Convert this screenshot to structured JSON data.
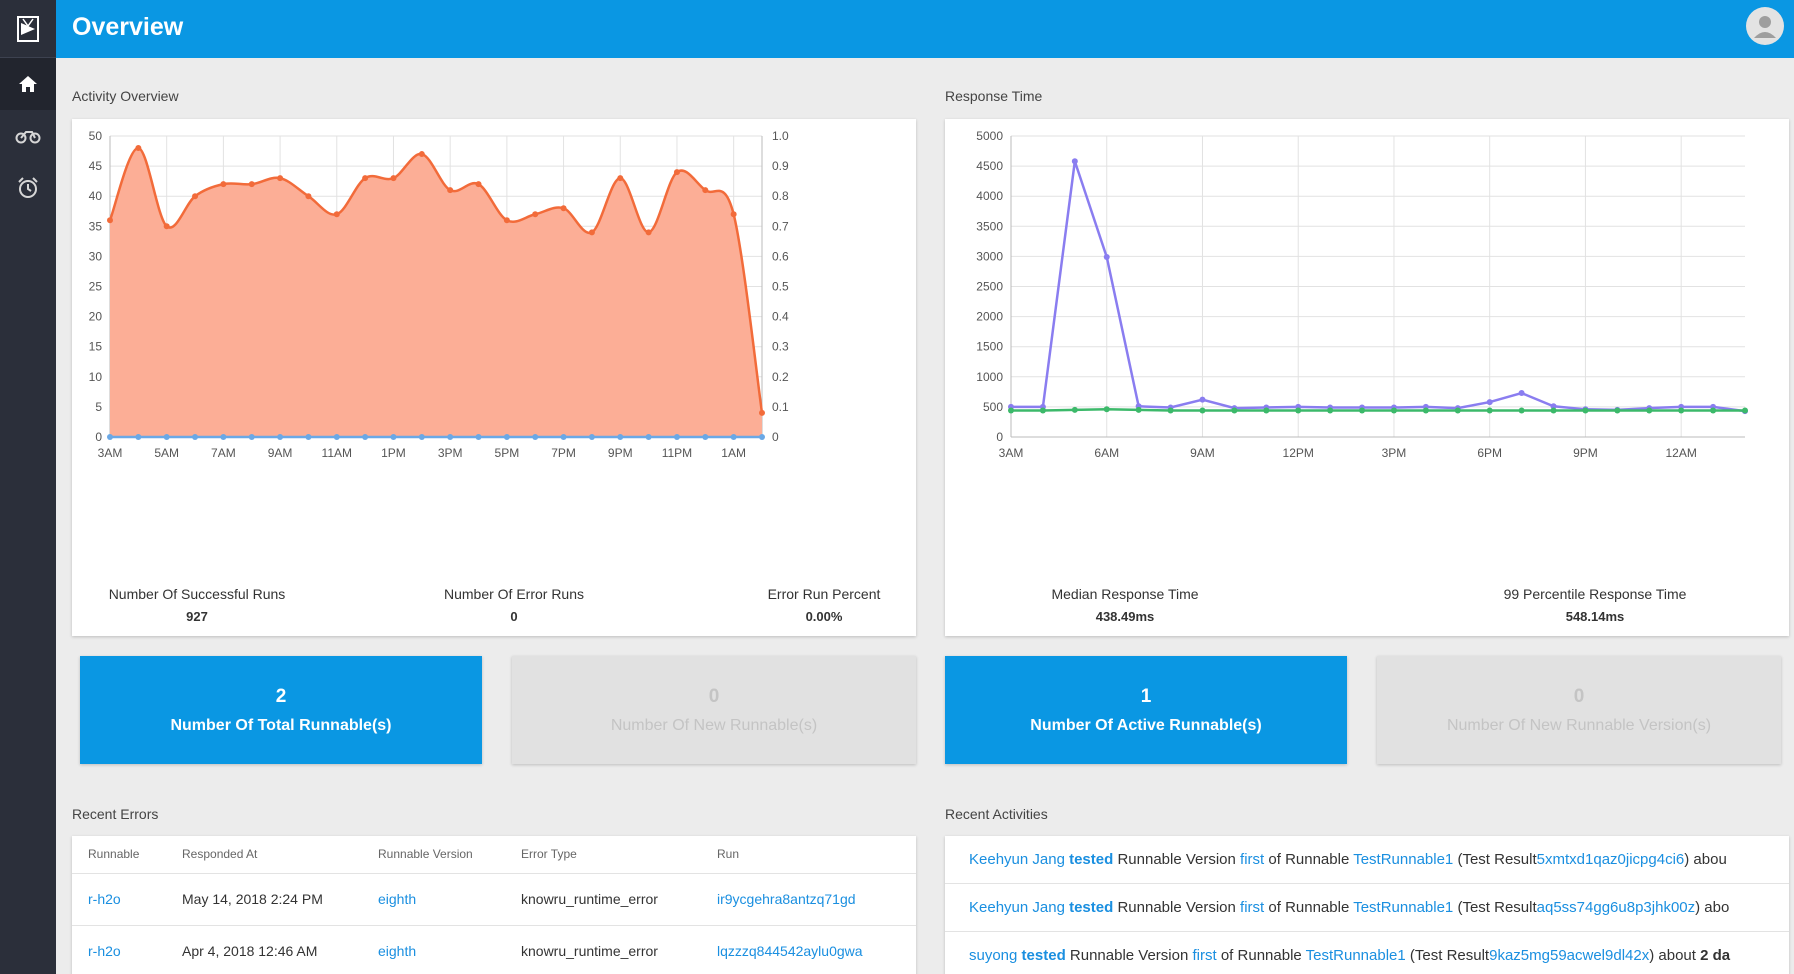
{
  "header": {
    "title": "Overview"
  },
  "sidebar": {
    "items": [
      "home",
      "runnables",
      "schedules"
    ]
  },
  "activity": {
    "section_title": "Activity Overview",
    "stats": [
      {
        "label": "Number Of Successful Runs",
        "value": "927"
      },
      {
        "label": "Number Of Error Runs",
        "value": "0"
      },
      {
        "label": "Error Run Percent",
        "value": "0.00%"
      }
    ]
  },
  "response": {
    "section_title": "Response Time",
    "stats": [
      {
        "label": "Median Response Time",
        "value": "438.49ms"
      },
      {
        "label": "99 Percentile Response Time",
        "value": "548.14ms"
      }
    ]
  },
  "tiles": [
    {
      "number": "2",
      "label": "Number Of Total Runnable(s)"
    },
    {
      "number": "0",
      "label": "Number Of New Runnable(s)"
    },
    {
      "number": "1",
      "label": "Number Of Active Runnable(s)"
    },
    {
      "number": "0",
      "label": "Number Of New Runnable Version(s)"
    }
  ],
  "recent_errors": {
    "title": "Recent Errors",
    "columns": [
      "Runnable",
      "Responded At",
      "Runnable Version",
      "Error Type",
      "Run"
    ],
    "rows": [
      [
        "r-h2o",
        "May 14, 2018 2:24 PM",
        "eighth",
        "knowru_runtime_error",
        "ir9ycgehra8antzq71gd"
      ],
      [
        "r-h2o",
        "Apr 4, 2018 12:46 AM",
        "eighth",
        "knowru_runtime_error",
        "lqzzzq844542aylu0gwa"
      ]
    ]
  },
  "recent_activities": {
    "title": "Recent Activities",
    "rows": [
      {
        "user": "Keehyun Jang",
        "action": "tested",
        "t1": "Runnable Version",
        "version": "first",
        "t2": "of Runnable",
        "runnable": "TestRunnable1",
        "t3": "(Test Result",
        "result": "5xmtxd1qaz0jicpg4ci6",
        "t4": ") abou"
      },
      {
        "user": "Keehyun Jang",
        "action": "tested",
        "t1": "Runnable Version",
        "version": "first",
        "t2": "of Runnable",
        "runnable": "TestRunnable1",
        "t3": "(Test Result",
        "result": "aq5ss74gg6u8p3jhk00z",
        "t4": ") abo"
      },
      {
        "user": "suyong",
        "action": "tested",
        "t1": "Runnable Version",
        "version": "first",
        "t2": "of Runnable",
        "runnable": "TestRunnable1",
        "t3": "(Test Result",
        "result": "9kaz5mg59acwel9dl42x",
        "t4": ") about",
        "tail": "2 da"
      }
    ]
  },
  "chart_data": [
    {
      "type": "area",
      "categories": [
        "3AM",
        "4AM",
        "5AM",
        "6AM",
        "7AM",
        "8AM",
        "9AM",
        "10AM",
        "11AM",
        "12PM",
        "1PM",
        "2PM",
        "3PM",
        "4PM",
        "5PM",
        "6PM",
        "7PM",
        "8PM",
        "9PM",
        "10PM",
        "11PM",
        "12AM",
        "1AM",
        "2AM"
      ],
      "x_tick_labels": [
        "3AM",
        "5AM",
        "7AM",
        "9AM",
        "11AM",
        "1PM",
        "3PM",
        "5PM",
        "7PM",
        "9PM",
        "11PM",
        "1AM"
      ],
      "series": [
        {
          "values": [
            36,
            48,
            35,
            40,
            42,
            42,
            43,
            40,
            37,
            43,
            43,
            47,
            41,
            42,
            36,
            37,
            38,
            34,
            43,
            34,
            44,
            41,
            37,
            4
          ],
          "color": "#f26b3a",
          "fill": "#fcae96",
          "axis": "left"
        },
        {
          "values": [
            0,
            0,
            0,
            0,
            0,
            0,
            0,
            0,
            0,
            0,
            0,
            0,
            0,
            0,
            0,
            0,
            0,
            0,
            0,
            0,
            0,
            0,
            0,
            0
          ],
          "color": "#6aa8e6",
          "axis": "right"
        }
      ],
      "ylim": [
        0,
        50
      ],
      "y_ticks": [
        0,
        5,
        10,
        15,
        20,
        25,
        30,
        35,
        40,
        45,
        50
      ],
      "y2lim": [
        0,
        1
      ],
      "y2_ticks": [
        "0",
        "0.1",
        "0.2",
        "0.3",
        "0.4",
        "0.5",
        "0.6",
        "0.7",
        "0.8",
        "0.9",
        "1.0"
      ],
      "grid": true
    },
    {
      "type": "line",
      "categories": [
        "3AM",
        "4AM",
        "5AM",
        "6AM",
        "7AM",
        "8AM",
        "9AM",
        "10AM",
        "11AM",
        "12PM",
        "1PM",
        "2PM",
        "3PM",
        "4PM",
        "5PM",
        "6PM",
        "7PM",
        "8PM",
        "9PM",
        "10PM",
        "11PM",
        "12AM",
        "1AM",
        "2AM"
      ],
      "x_tick_labels": [
        "3AM",
        "6AM",
        "9AM",
        "12PM",
        "3PM",
        "6PM",
        "9PM",
        "12AM"
      ],
      "series": [
        {
          "values": [
            500,
            500,
            4580,
            2990,
            510,
            490,
            620,
            480,
            490,
            500,
            490,
            490,
            490,
            500,
            480,
            580,
            730,
            510,
            460,
            450,
            480,
            500,
            500,
            430
          ],
          "color": "#8a7df0"
        },
        {
          "values": [
            440,
            440,
            450,
            460,
            450,
            440,
            440,
            440,
            440,
            440,
            440,
            440,
            440,
            440,
            440,
            440,
            440,
            440,
            440,
            440,
            440,
            440,
            440,
            440
          ],
          "color": "#3cb96a"
        }
      ],
      "ylim": [
        0,
        5000
      ],
      "y_ticks": [
        0,
        500,
        1000,
        1500,
        2000,
        2500,
        3000,
        3500,
        4000,
        4500,
        5000
      ],
      "grid": true
    }
  ]
}
